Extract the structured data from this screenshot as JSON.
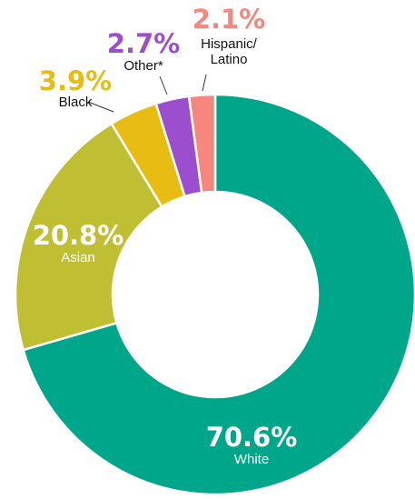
{
  "chart_data": {
    "type": "pie",
    "donut": true,
    "slices": [
      {
        "label": "White",
        "value": 70.6,
        "pct_text": "70.6%",
        "color": "#00a68a"
      },
      {
        "label": "Asian",
        "value": 20.8,
        "pct_text": "20.8%",
        "color": "#c0bf33"
      },
      {
        "label": "Black",
        "value": 3.9,
        "pct_text": "3.9%",
        "color": "#e8bc12"
      },
      {
        "label": "Other*",
        "value": 2.7,
        "pct_text": "2.7%",
        "color": "#9b4fcf"
      },
      {
        "label_lines": [
          "Hispanic/",
          "Latino"
        ],
        "value": 2.1,
        "pct_text": "2.1%",
        "color": "#f5877e"
      }
    ]
  }
}
